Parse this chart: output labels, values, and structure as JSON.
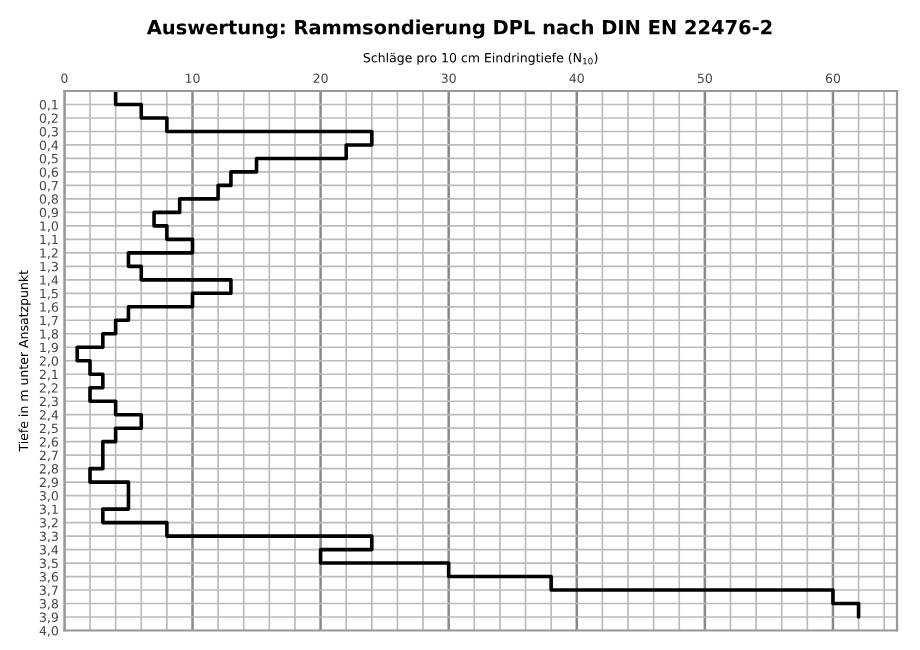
{
  "chart_data": {
    "type": "line",
    "title": "Auswertung: Rammsondierung DPL nach DIN EN 22476-2",
    "xlabel": "Schläge pro 10 cm Eindringtiefe (N$_{10}$)",
    "ylabel": "Tiefe in m unter Ansatzpunkt",
    "x": [
      4,
      4,
      6,
      6,
      8,
      8,
      24,
      24,
      22,
      22,
      15,
      15,
      13,
      13,
      12,
      12,
      9,
      9,
      7,
      7,
      8,
      8,
      10,
      10,
      5,
      5,
      6,
      6,
      13,
      13,
      10,
      10,
      5,
      5,
      4,
      4,
      3,
      3,
      1,
      1,
      2,
      2,
      3,
      3,
      2,
      2,
      4,
      4,
      6,
      6,
      4,
      4,
      3,
      3,
      3,
      3,
      2,
      2,
      5,
      5,
      5,
      5,
      3,
      3,
      8,
      8,
      24,
      24,
      20,
      20,
      30,
      30,
      38,
      38,
      60,
      60,
      62,
      62
    ],
    "values": [
      0.0,
      0.1,
      0.1,
      0.2,
      0.2,
      0.3,
      0.3,
      0.4,
      0.4,
      0.5,
      0.5,
      0.6,
      0.6,
      0.7,
      0.7,
      0.8,
      0.8,
      0.9,
      0.9,
      1.0,
      1.0,
      1.1,
      1.1,
      1.2,
      1.2,
      1.3,
      1.3,
      1.4,
      1.4,
      1.5,
      1.5,
      1.6,
      1.6,
      1.7,
      1.7,
      1.8,
      1.8,
      1.9,
      1.9,
      2.0,
      2.0,
      2.1,
      2.1,
      2.2,
      2.2,
      2.3,
      2.3,
      2.4,
      2.4,
      2.5,
      2.5,
      2.6,
      2.6,
      2.7,
      2.7,
      2.8,
      2.8,
      2.9,
      2.9,
      3.0,
      3.0,
      3.1,
      3.1,
      3.2,
      3.2,
      3.3,
      3.3,
      3.4,
      3.4,
      3.5,
      3.5,
      3.6,
      3.6,
      3.7,
      3.7,
      3.8,
      3.8,
      3.9
    ],
    "color": "#000000",
    "xlim": [
      0,
      65
    ],
    "xticks": [
      0,
      {
        "value": 2,
        "label": null
      },
      {
        "value": 4,
        "label": null
      },
      {
        "value": 6,
        "label": null
      },
      {
        "value": 8,
        "label": null
      },
      10,
      {
        "value": 12,
        "label": null
      },
      {
        "value": 14,
        "label": null
      },
      {
        "value": 16,
        "label": null
      },
      {
        "value": 18,
        "label": null
      },
      20,
      {
        "value": 22,
        "label": null
      },
      {
        "value": 24,
        "label": null
      },
      {
        "value": 26,
        "label": null
      },
      {
        "value": 28,
        "label": null
      },
      30,
      {
        "value": 32,
        "label": null
      },
      {
        "value": 34,
        "label": null
      },
      {
        "value": 36,
        "label": null
      },
      {
        "value": 38,
        "label": null
      },
      40,
      {
        "value": 42,
        "label": null
      },
      {
        "value": 44,
        "label": null
      },
      {
        "value": 46,
        "label": null
      },
      {
        "value": 48,
        "label": null
      },
      50,
      {
        "value": 52,
        "label": null
      },
      {
        "value": 54,
        "label": null
      },
      {
        "value": 56,
        "label": null
      },
      {
        "value": 58,
        "label": null
      },
      60,
      {
        "value": 62,
        "label": null
      },
      {
        "value": 64,
        "label": null
      }
    ],
    "ylim": [
      4.0,
      0
    ],
    "yticks": [
      {
        "value": 0.1,
        "label": "0,1"
      },
      {
        "value": 0.2,
        "label": "0,2"
      },
      {
        "value": 0.3,
        "label": "0,3"
      },
      {
        "value": 0.4,
        "label": "0,4"
      },
      {
        "value": 0.5,
        "label": "0,5"
      },
      {
        "value": 0.6,
        "label": "0,6"
      },
      {
        "value": 0.7,
        "label": "0,7"
      },
      {
        "value": 0.8,
        "label": "0,8"
      },
      {
        "value": 0.9,
        "label": "0,9"
      },
      {
        "value": 1.0,
        "label": "1,0"
      },
      {
        "value": 1.1,
        "label": "1,1"
      },
      {
        "value": 1.2,
        "label": "1,2"
      },
      {
        "value": 1.3,
        "label": "1,3"
      },
      {
        "value": 1.4,
        "label": "1,4"
      },
      {
        "value": 1.5,
        "label": "1,5"
      },
      {
        "value": 1.6,
        "label": "1,6"
      },
      {
        "value": 1.7,
        "label": "1,7"
      },
      {
        "value": 1.8,
        "label": "1,8"
      },
      {
        "value": 1.9,
        "label": "1,9"
      },
      {
        "value": 2.0,
        "label": "2,0"
      },
      {
        "value": 2.1,
        "label": "2,1"
      },
      {
        "value": 2.2,
        "label": "2,2"
      },
      {
        "value": 2.3,
        "label": "2,3"
      },
      {
        "value": 2.4,
        "label": "2,4"
      },
      {
        "value": 2.5,
        "label": "2,5"
      },
      {
        "value": 2.6,
        "label": "2,6"
      },
      {
        "value": 2.7,
        "label": "2,7"
      },
      {
        "value": 2.8,
        "label": "2,8"
      },
      {
        "value": 2.9,
        "label": "2,9"
      },
      {
        "value": 3.0,
        "label": "3,0"
      },
      {
        "value": 3.1,
        "label": "3,1"
      },
      {
        "value": 3.2,
        "label": "3,2"
      },
      {
        "value": 3.3,
        "label": "3,3"
      },
      {
        "value": 3.4,
        "label": "3,4"
      },
      {
        "value": 3.5,
        "label": "3,5"
      },
      {
        "value": 3.6,
        "label": "3,6"
      },
      {
        "value": 3.7,
        "label": "3,7"
      },
      {
        "value": 3.8,
        "label": "3,8"
      },
      {
        "value": 3.9,
        "label": "3,9"
      },
      {
        "value": 4.0,
        "label": "4,0"
      }
    ],
    "grid": true
  }
}
